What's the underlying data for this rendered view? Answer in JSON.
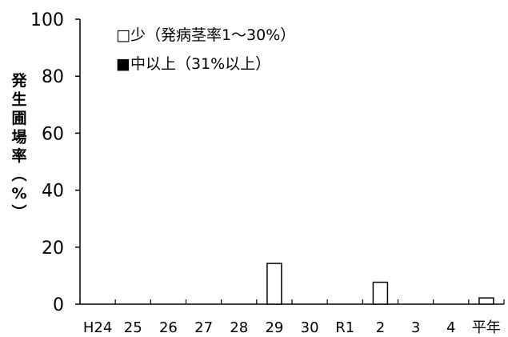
{
  "chart_data": {
    "type": "bar",
    "title": "",
    "xlabel": "",
    "ylabel": "発生圃場率（%）",
    "ylim": [
      0,
      100
    ],
    "yticks": [
      0,
      20,
      40,
      60,
      80,
      100
    ],
    "categories": [
      "H24",
      "25",
      "26",
      "27",
      "28",
      "29",
      "30",
      "R1",
      "2",
      "3",
      "4",
      "平年"
    ],
    "series": [
      {
        "name": "少（発病茎率1～30%）",
        "marker": "□",
        "fill": "#ffffff",
        "stroke": "#000000",
        "values": [
          0,
          0,
          0,
          0,
          0,
          14.3,
          0,
          0,
          7.7,
          0,
          0,
          2.2
        ]
      },
      {
        "name": "中以上（31%以上）",
        "marker": "■",
        "fill": "#000000",
        "stroke": "#000000",
        "values": [
          0,
          0,
          0,
          0,
          0,
          0,
          0,
          0,
          0,
          0,
          0,
          0
        ]
      }
    ],
    "grid": false,
    "legend_position": "top-left"
  }
}
